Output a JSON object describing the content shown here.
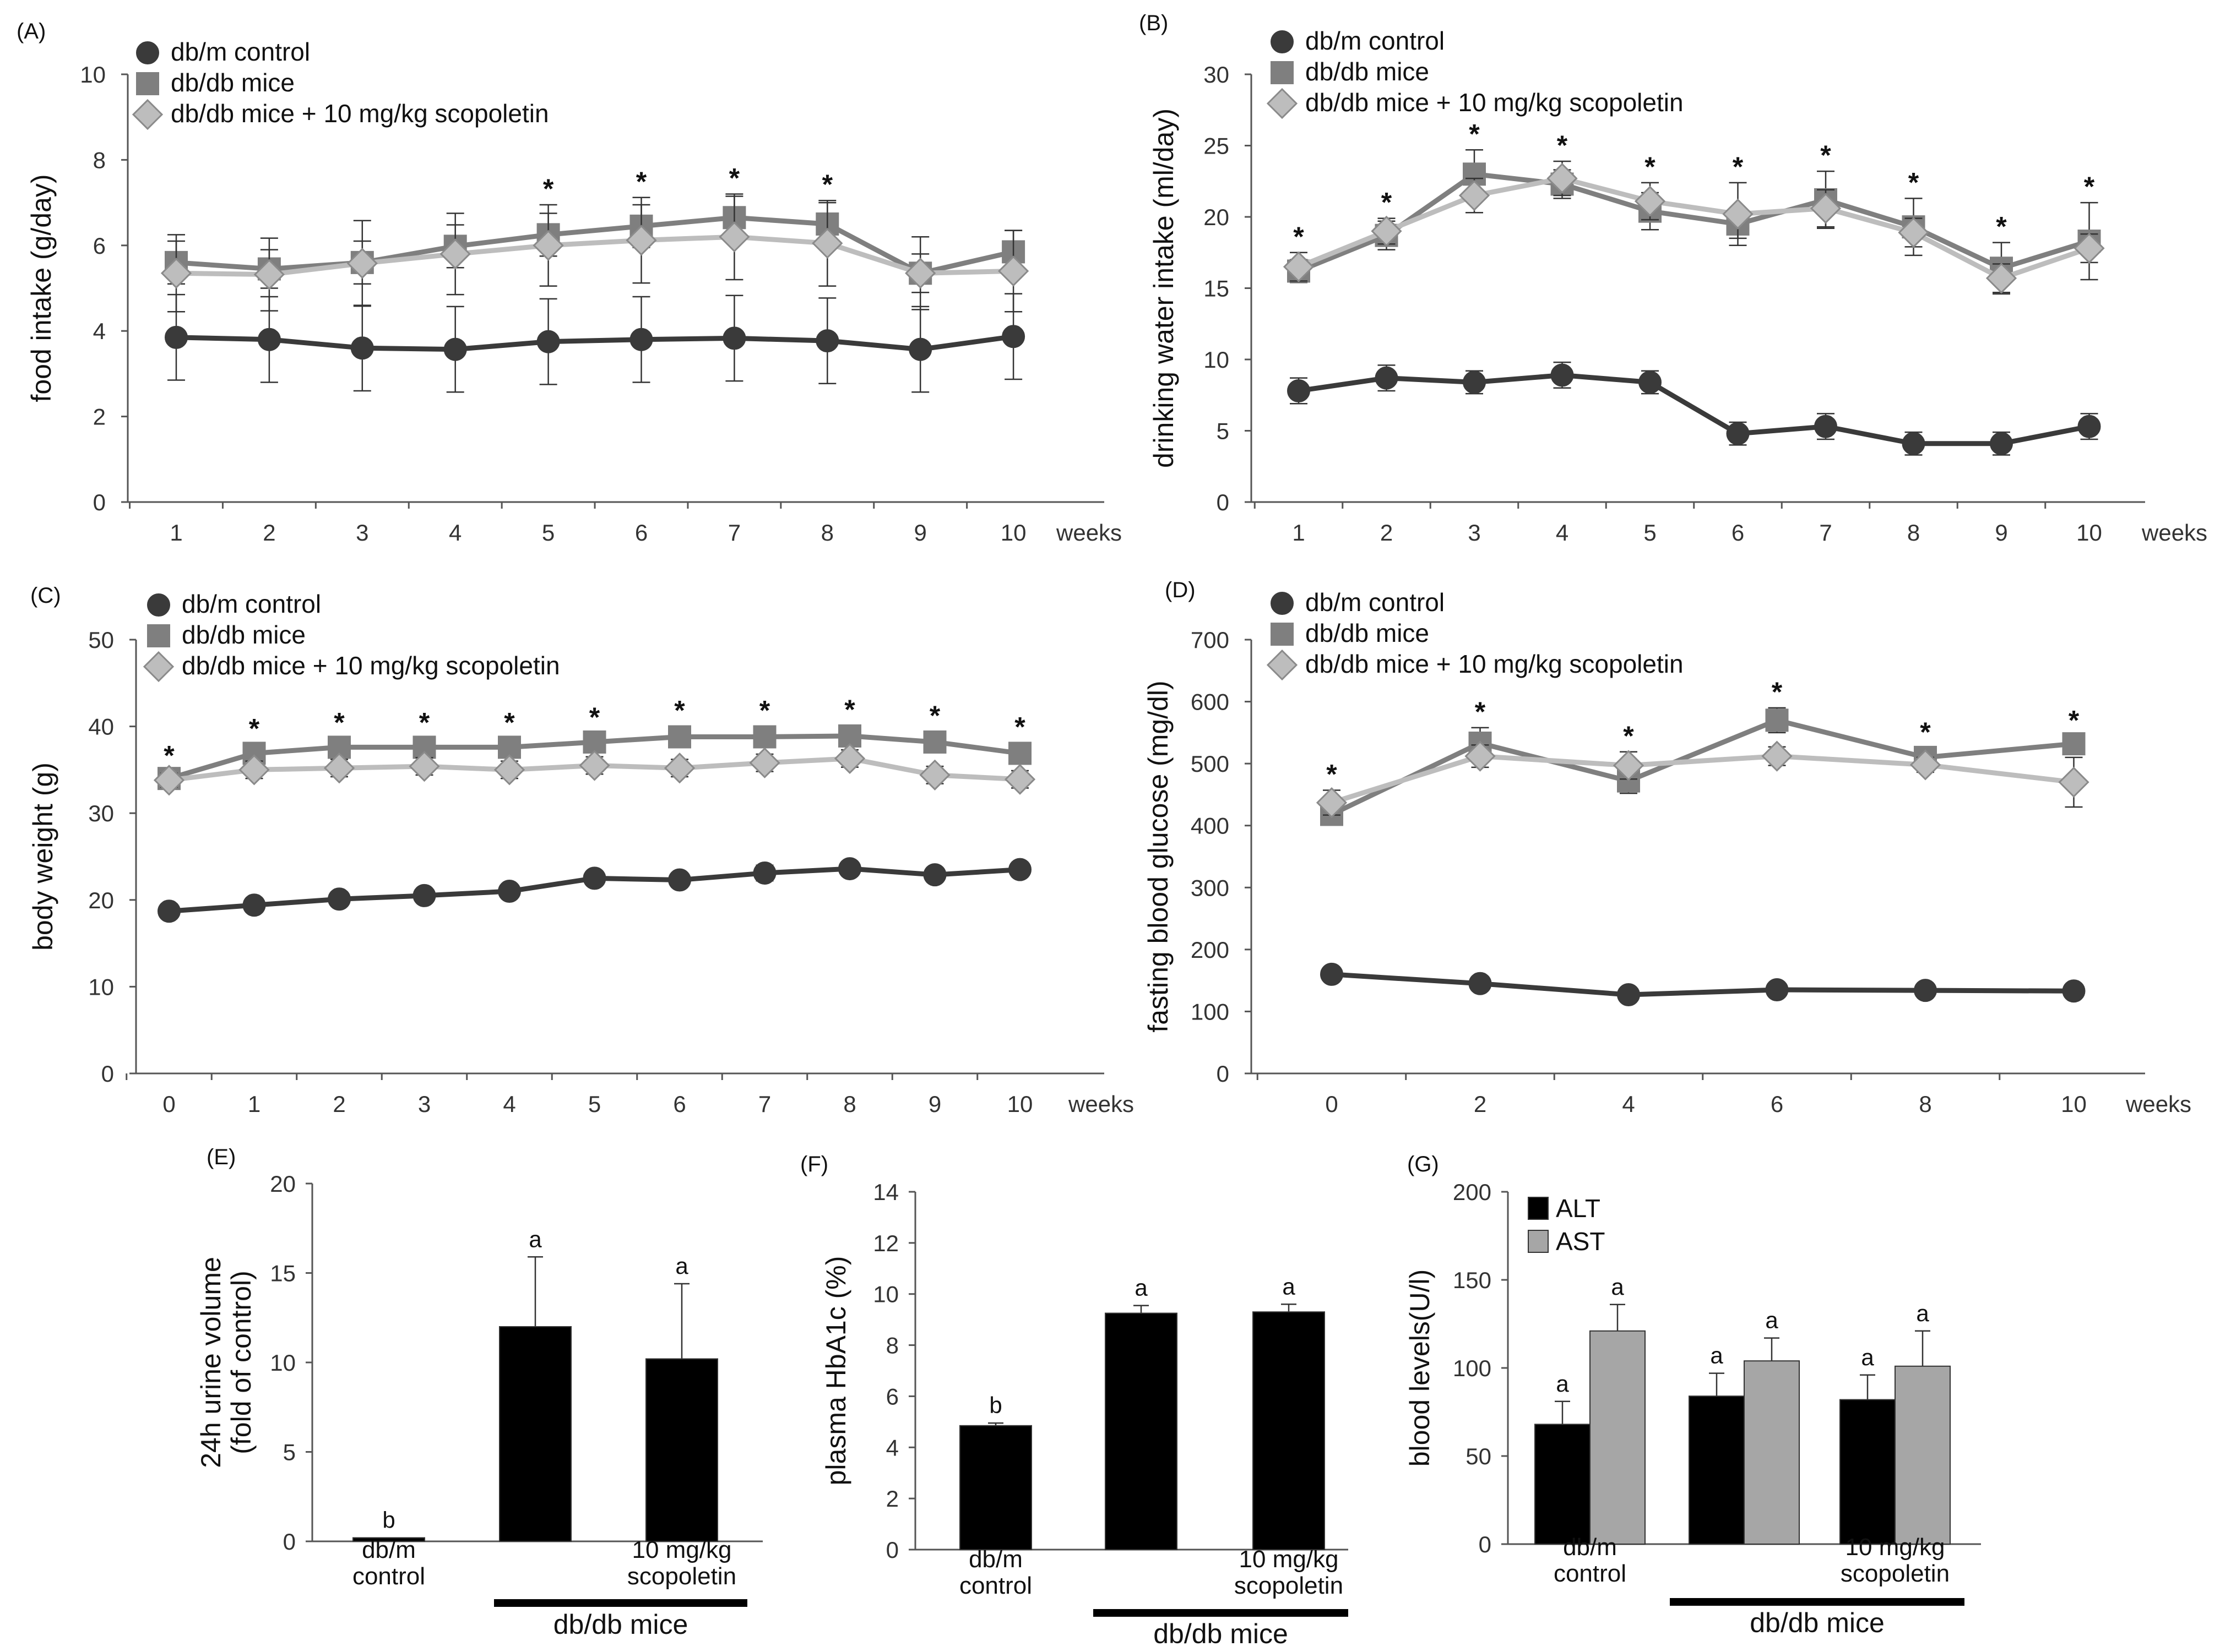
{
  "chart_data": [
    {
      "id": "A",
      "panel_label": "(A)",
      "type": "line",
      "ylabel": "food intake (g/day)",
      "xlabel": "weeks",
      "ylim": [
        0,
        10
      ],
      "yticks": [
        "0",
        "2",
        "4",
        "6",
        "8",
        "10"
      ],
      "xvals": [
        1,
        2,
        3,
        4,
        5,
        6,
        7,
        8,
        9,
        10
      ],
      "xticklabels": [
        "1",
        "2",
        "3",
        "4",
        "5",
        "6",
        "7",
        "8",
        "9",
        "10"
      ],
      "series": [
        {
          "name": "db/m control",
          "marker": "circle",
          "color": "#3a3a3a",
          "values": [
            3.85,
            3.8,
            3.6,
            3.57,
            3.75,
            3.8,
            3.83,
            3.77,
            3.57,
            3.87
          ],
          "errors": [
            1.0,
            1.0,
            1.0,
            1.0,
            1.0,
            1.0,
            1.0,
            1.0,
            1.0,
            1.0
          ]
        },
        {
          "name": "db/db mice",
          "marker": "square",
          "color": "#7f7f7f",
          "values": [
            5.6,
            5.45,
            5.6,
            5.98,
            6.25,
            6.45,
            6.65,
            6.5,
            5.35,
            5.85
          ],
          "errors": [
            0.5,
            0.45,
            0.5,
            0.5,
            0.5,
            0.5,
            0.5,
            0.5,
            0.45,
            0.5
          ]
        },
        {
          "name": "db/db mice + 10 mg/kg  scopoletin",
          "marker": "diamond",
          "color": "#bdbdbd",
          "values": [
            5.35,
            5.32,
            5.58,
            5.8,
            6.0,
            6.12,
            6.2,
            6.05,
            5.35,
            5.4
          ],
          "errors": [
            0.9,
            0.85,
            1.0,
            0.95,
            0.95,
            1.0,
            1.0,
            1.0,
            0.85,
            0.95
          ]
        }
      ],
      "significance": [
        "",
        "",
        "",
        "",
        "*",
        "*",
        "*",
        "*",
        "",
        ""
      ]
    },
    {
      "id": "B",
      "panel_label": "(B)",
      "type": "line",
      "ylabel": "drinking  water intake (ml/day)",
      "xlabel": "weeks",
      "ylim": [
        0,
        30
      ],
      "yticks": [
        "0",
        "5",
        "10",
        "15",
        "20",
        "25",
        "30"
      ],
      "xvals": [
        1,
        2,
        3,
        4,
        5,
        6,
        7,
        8,
        9,
        10
      ],
      "xticklabels": [
        "1",
        "2",
        "3",
        "4",
        "5",
        "6",
        "7",
        "8",
        "9",
        "10"
      ],
      "series": [
        {
          "name": "db/m control",
          "marker": "circle",
          "color": "#3a3a3a",
          "values": [
            7.8,
            8.7,
            8.4,
            8.9,
            8.4,
            4.8,
            5.3,
            4.1,
            4.1,
            5.3
          ],
          "errors": [
            0.9,
            0.9,
            0.8,
            0.9,
            0.8,
            0.8,
            0.9,
            0.8,
            0.8,
            0.9
          ]
        },
        {
          "name": "db/db mice",
          "marker": "square",
          "color": "#7f7f7f",
          "values": [
            16.2,
            18.7,
            23.0,
            22.3,
            20.4,
            19.5,
            21.2,
            19.3,
            16.4,
            18.3
          ],
          "errors": [
            0.8,
            1.0,
            1.7,
            1.0,
            1.3,
            1.0,
            2.0,
            2.0,
            1.8,
            2.7
          ]
        },
        {
          "name": "db/db mice + 10 mg/kg  scopoletin",
          "marker": "diamond",
          "color": "#bdbdbd",
          "values": [
            16.5,
            19.0,
            21.5,
            22.7,
            21.1,
            20.2,
            20.6,
            18.9,
            15.7,
            17.8
          ],
          "errors": [
            1.0,
            0.9,
            1.2,
            1.2,
            1.3,
            2.2,
            1.3,
            1.0,
            1.0,
            1.0
          ]
        }
      ],
      "significance": [
        "*",
        "*",
        "*",
        "*",
        "*",
        "*",
        "*",
        "*",
        "*",
        "*"
      ]
    },
    {
      "id": "C",
      "panel_label": "(C)",
      "type": "line",
      "ylabel": "body weight (g)",
      "xlabel": "weeks",
      "ylim": [
        0,
        50
      ],
      "yticks": [
        "0",
        "10",
        "20",
        "30",
        "40",
        "50"
      ],
      "xvals": [
        0,
        1,
        2,
        3,
        4,
        5,
        6,
        7,
        8,
        9,
        10
      ],
      "xticklabels": [
        "0",
        "1",
        "2",
        "3",
        "4",
        "5",
        "6",
        "7",
        "8",
        "9",
        "10"
      ],
      "series": [
        {
          "name": "db/m control",
          "marker": "circle",
          "color": "#3a3a3a",
          "values": [
            18.7,
            19.4,
            20.1,
            20.5,
            21.0,
            22.5,
            22.3,
            23.1,
            23.6,
            22.9,
            23.5
          ],
          "errors": [
            0.8,
            0.8,
            0.8,
            0.7,
            0.7,
            0.8,
            0.8,
            0.9,
            0.8,
            0.8,
            0.8
          ]
        },
        {
          "name": "db/db mice",
          "marker": "square",
          "color": "#7f7f7f",
          "values": [
            34.0,
            36.9,
            37.6,
            37.6,
            37.6,
            38.2,
            38.8,
            38.8,
            38.9,
            38.2,
            36.9
          ],
          "errors": [
            0.8,
            1.0,
            1.0,
            1.0,
            1.0,
            1.0,
            1.2,
            1.2,
            1.2,
            1.2,
            1.2
          ]
        },
        {
          "name": "db/db mice + 10 mg/kg  scopoletin",
          "marker": "diamond",
          "color": "#bdbdbd",
          "values": [
            33.8,
            35.0,
            35.2,
            35.4,
            35.0,
            35.5,
            35.2,
            35.8,
            36.3,
            34.4,
            33.9
          ],
          "errors": [
            0.8,
            1.0,
            1.0,
            1.0,
            1.0,
            1.0,
            1.0,
            1.0,
            1.0,
            1.0,
            1.0
          ]
        }
      ],
      "significance": [
        "*",
        "*",
        "*",
        "*",
        "*",
        "*",
        "*",
        "*",
        "*",
        "*",
        "*"
      ]
    },
    {
      "id": "D",
      "panel_label": "(D)",
      "type": "line",
      "ylabel": "fasting blood glucose (mg/dl)",
      "xlabel": "weeks",
      "ylim": [
        0,
        700
      ],
      "yticks": [
        "0",
        "100",
        "200",
        "300",
        "400",
        "500",
        "600",
        "700"
      ],
      "xvals": [
        0,
        2,
        4,
        6,
        8,
        10
      ],
      "xticklabels": [
        "0",
        "2",
        "4",
        "6",
        "8",
        "10"
      ],
      "series": [
        {
          "name": "db/m control",
          "marker": "circle",
          "color": "#3a3a3a",
          "values": [
            160,
            145,
            127,
            135,
            134,
            133
          ],
          "errors": [
            6,
            6,
            6,
            6,
            6,
            6
          ]
        },
        {
          "name": "db/db mice",
          "marker": "square",
          "color": "#7f7f7f",
          "values": [
            418,
            533,
            472,
            570,
            510,
            532
          ],
          "errors": [
            15,
            25,
            20,
            20,
            15,
            12
          ]
        },
        {
          "name": "db/db mice + 10 mg/kg  scopoletin",
          "marker": "diamond",
          "color": "#bdbdbd",
          "values": [
            437,
            512,
            497,
            512,
            498,
            470
          ],
          "errors": [
            20,
            18,
            22,
            15,
            12,
            40
          ]
        }
      ],
      "significance": [
        "*",
        "*",
        "*",
        "*",
        "*",
        "*"
      ]
    },
    {
      "id": "E",
      "panel_label": "(E)",
      "type": "bar",
      "ylabel_lines": [
        "24h urine volume",
        "(fold of control)"
      ],
      "ylim": [
        0,
        20
      ],
      "yticks": [
        "0",
        "5",
        "10",
        "15",
        "20"
      ],
      "category_lines": [
        [
          "db/m",
          "control"
        ],
        [
          ""
        ],
        [
          "10 mg/kg",
          "scopoletin"
        ]
      ],
      "group_label": "db/db mice",
      "bar_colors": [
        "#000000"
      ],
      "values": [
        [
          0.2
        ],
        [
          12.0
        ],
        [
          10.2
        ]
      ],
      "errors": [
        [
          0.0
        ],
        [
          3.9
        ],
        [
          4.2
        ]
      ],
      "letters": [
        [
          "b"
        ],
        [
          "a"
        ],
        [
          "a"
        ]
      ]
    },
    {
      "id": "F",
      "panel_label": "(F)",
      "type": "bar",
      "ylabel_lines": [
        "plasma HbA1c (%)"
      ],
      "ylim": [
        0,
        14
      ],
      "yticks": [
        "0",
        "2",
        "4",
        "6",
        "8",
        "10",
        "12",
        "14"
      ],
      "category_lines": [
        [
          "db/m",
          "control"
        ],
        [
          ""
        ],
        [
          "10 mg/kg",
          "scopoletin"
        ]
      ],
      "group_label": "db/db mice",
      "bar_colors": [
        "#000000"
      ],
      "values": [
        [
          4.85
        ],
        [
          9.25
        ],
        [
          9.3
        ]
      ],
      "errors": [
        [
          0.1
        ],
        [
          0.3
        ],
        [
          0.3
        ]
      ],
      "letters": [
        [
          "b"
        ],
        [
          "a"
        ],
        [
          "a"
        ]
      ]
    },
    {
      "id": "G",
      "panel_label": "(G)",
      "type": "bar",
      "ylabel_lines": [
        "blood levels(U/l)"
      ],
      "ylim": [
        0,
        200
      ],
      "yticks": [
        "0",
        "50",
        "100",
        "150",
        "200"
      ],
      "legend": [
        "ALT",
        "AST"
      ],
      "category_lines": [
        [
          "db/m",
          "control"
        ],
        [
          ""
        ],
        [
          "10 mg/kg",
          "scopoletin"
        ]
      ],
      "group_label": "db/db mice",
      "bar_colors": [
        "#000000",
        "#a6a6a6"
      ],
      "values": [
        [
          68,
          121
        ],
        [
          84,
          104
        ],
        [
          82,
          101
        ]
      ],
      "errors": [
        [
          13,
          15
        ],
        [
          13,
          13
        ],
        [
          14,
          20
        ]
      ],
      "letters": [
        [
          "a",
          "a"
        ],
        [
          "a",
          "a"
        ],
        [
          "a",
          "a"
        ]
      ]
    }
  ]
}
